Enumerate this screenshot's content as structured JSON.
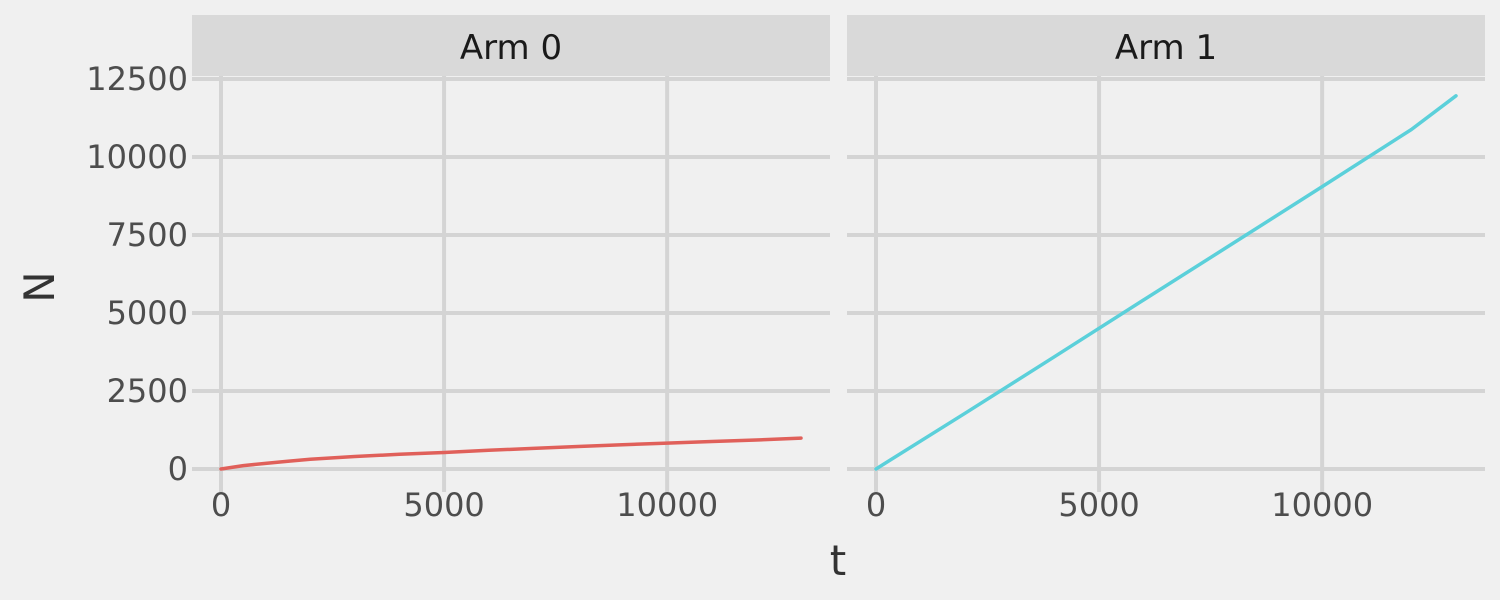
{
  "chart_data": {
    "type": "line",
    "xlabel": "t",
    "ylabel": "N",
    "xlim": [
      -650,
      13650
    ],
    "ylim": [
      0,
      14000
    ],
    "x_ticks": [
      0,
      5000,
      10000
    ],
    "y_ticks": [
      0,
      2500,
      5000,
      7500,
      10000,
      12500
    ],
    "x_tick_labels": [
      "0",
      "5000",
      "10000"
    ],
    "y_tick_labels": [
      "0",
      "2500",
      "5000",
      "7500",
      "10000",
      "12500"
    ],
    "grid": true,
    "facets": [
      {
        "label": "Arm 0",
        "color": "#E0605A",
        "x": [
          0,
          500,
          1000,
          1500,
          2000,
          3000,
          4000,
          5000,
          6000,
          7000,
          8000,
          9000,
          10000,
          11000,
          12000,
          13000
        ],
        "y": [
          0,
          110,
          180,
          250,
          310,
          400,
          470,
          530,
          600,
          660,
          720,
          780,
          830,
          880,
          930,
          990
        ]
      },
      {
        "label": "Arm 1",
        "color": "#5BD0DA",
        "x": [
          0,
          2000,
          4000,
          6000,
          8000,
          10000,
          12000,
          13000
        ],
        "y": [
          0,
          1790,
          3600,
          5420,
          7230,
          9050,
          10880,
          11960
        ]
      }
    ]
  }
}
